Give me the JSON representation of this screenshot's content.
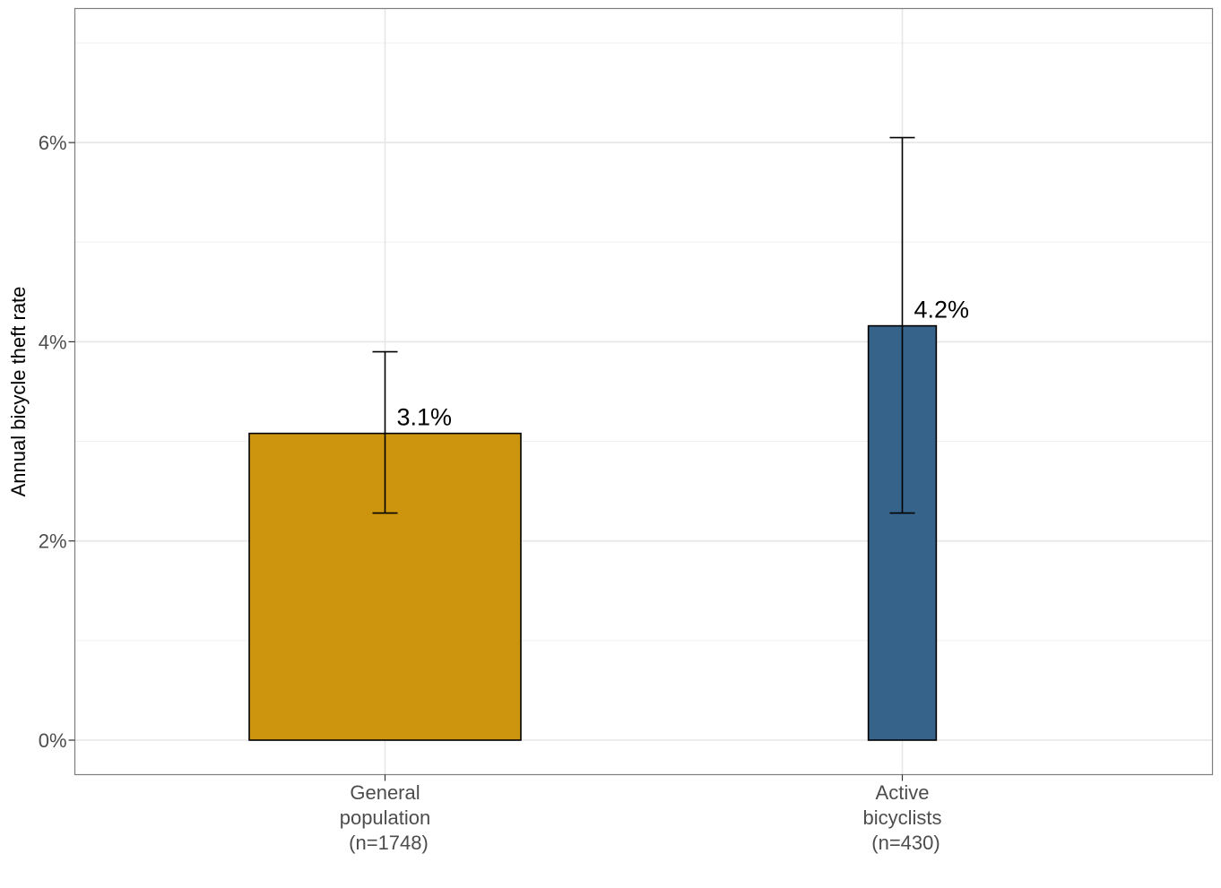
{
  "chart_data": {
    "type": "bar",
    "title": "",
    "xlabel": "",
    "ylabel": "Annual bicycle theft rate",
    "categories": [
      [
        "General",
        "population",
        "(n=1748)"
      ],
      [
        "Active",
        "bicyclists",
        "(n=430)"
      ]
    ],
    "category_names": [
      "General population (n=1748)",
      "Active bicyclists (n=430)"
    ],
    "values": [
      3.08,
      4.16
    ],
    "value_labels": [
      "3.1%",
      "4.2%"
    ],
    "error_bars": [
      {
        "lower": 2.28,
        "upper": 3.9
      },
      {
        "lower": 2.28,
        "upper": 6.05
      }
    ],
    "sample_sizes": [
      1748,
      430
    ],
    "bar_colors": [
      "#CC950D",
      "#366389"
    ],
    "bar_relative_widths": [
      1.0,
      0.25
    ],
    "ylim": [
      -0.35,
      7.3
    ],
    "yticks": [
      0,
      2,
      4,
      6
    ],
    "ytick_labels": [
      "0%",
      "2%",
      "4%",
      "6%"
    ],
    "grid": true,
    "legend": null
  }
}
